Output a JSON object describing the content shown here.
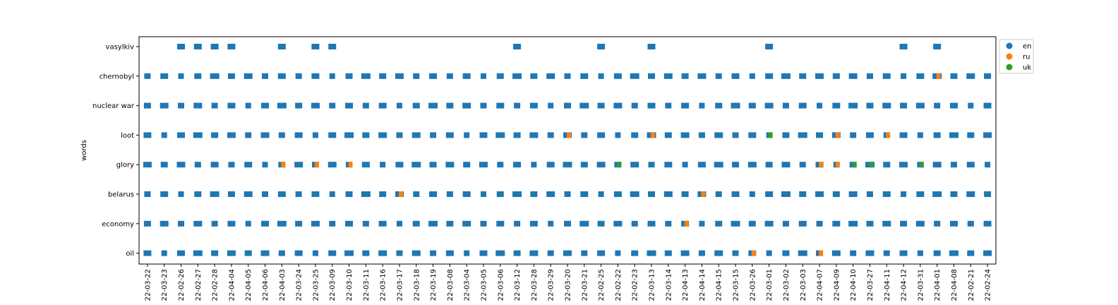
{
  "chart_data": {
    "type": "scatter",
    "title": "",
    "xlabel": "",
    "ylabel": "words",
    "grid": false,
    "legend_position": "upper-right-outside",
    "categories": [
      "22-03-22",
      "22-03-23",
      "22-02-26",
      "22-02-27",
      "22-02-28",
      "22-04-04",
      "22-04-05",
      "22-04-06",
      "22-04-03",
      "22-03-24",
      "22-03-25",
      "22-03-09",
      "22-03-10",
      "22-03-11",
      "22-03-16",
      "22-03-17",
      "22-03-18",
      "22-03-19",
      "22-03-08",
      "22-03-04",
      "22-03-05",
      "22-03-06",
      "22-03-12",
      "22-03-28",
      "22-03-29",
      "22-03-20",
      "22-03-21",
      "22-02-25",
      "22-02-22",
      "22-02-23",
      "22-03-13",
      "22-03-14",
      "22-04-13",
      "22-04-14",
      "22-04-15",
      "22-03-15",
      "22-03-26",
      "22-03-01",
      "22-03-02",
      "22-03-03",
      "22-04-07",
      "22-04-09",
      "22-04-10",
      "22-03-27",
      "22-04-11",
      "22-04-12",
      "22-03-31",
      "22-04-01",
      "22-04-08",
      "22-02-21",
      "22-02-24"
    ],
    "words": [
      "vasylkiv",
      "chernobyl",
      "nuclear war",
      "loot",
      "glory",
      "belarus",
      "economy",
      "oil"
    ],
    "series": [
      {
        "name": "en",
        "color": "#1f77b4"
      },
      {
        "name": "ru",
        "color": "#ff7f0e"
      },
      {
        "name": "uk",
        "color": "#2ca02c"
      }
    ],
    "presence": {
      "vasylkiv": [
        2,
        3,
        4,
        5,
        8,
        10,
        11,
        22,
        27,
        30,
        37,
        45,
        47
      ],
      "chernobyl": "all",
      "nuclear war": "all",
      "loot": "all",
      "glory": "all",
      "belarus": "all",
      "economy": "all",
      "oil": "all"
    },
    "non_en_points": [
      {
        "word": "chernobyl",
        "category": "22-04-01",
        "lang": "ru"
      },
      {
        "word": "loot",
        "category": "22-03-20",
        "lang": "ru"
      },
      {
        "word": "loot",
        "category": "22-03-13",
        "lang": "ru"
      },
      {
        "word": "loot",
        "category": "22-03-01",
        "lang": "uk"
      },
      {
        "word": "loot",
        "category": "22-04-09",
        "lang": "ru"
      },
      {
        "word": "loot",
        "category": "22-04-11",
        "lang": "ru"
      },
      {
        "word": "glory",
        "category": "22-04-03",
        "lang": "ru"
      },
      {
        "word": "glory",
        "category": "22-03-25",
        "lang": "ru"
      },
      {
        "word": "glory",
        "category": "22-03-10",
        "lang": "ru"
      },
      {
        "word": "glory",
        "category": "22-02-22",
        "lang": "uk"
      },
      {
        "word": "glory",
        "category": "22-04-07",
        "lang": "ru"
      },
      {
        "word": "glory",
        "category": "22-04-09",
        "lang": "ru"
      },
      {
        "word": "glory",
        "category": "22-04-10",
        "lang": "uk"
      },
      {
        "word": "glory",
        "category": "22-03-27",
        "lang": "uk"
      },
      {
        "word": "glory",
        "category": "22-03-31",
        "lang": "uk"
      },
      {
        "word": "belarus",
        "category": "22-03-17",
        "lang": "ru"
      },
      {
        "word": "belarus",
        "category": "22-04-14",
        "lang": "ru"
      },
      {
        "word": "economy",
        "category": "22-04-13",
        "lang": "ru"
      },
      {
        "word": "oil",
        "category": "22-03-26",
        "lang": "ru"
      },
      {
        "word": "oil",
        "category": "22-04-07",
        "lang": "ru"
      }
    ]
  }
}
